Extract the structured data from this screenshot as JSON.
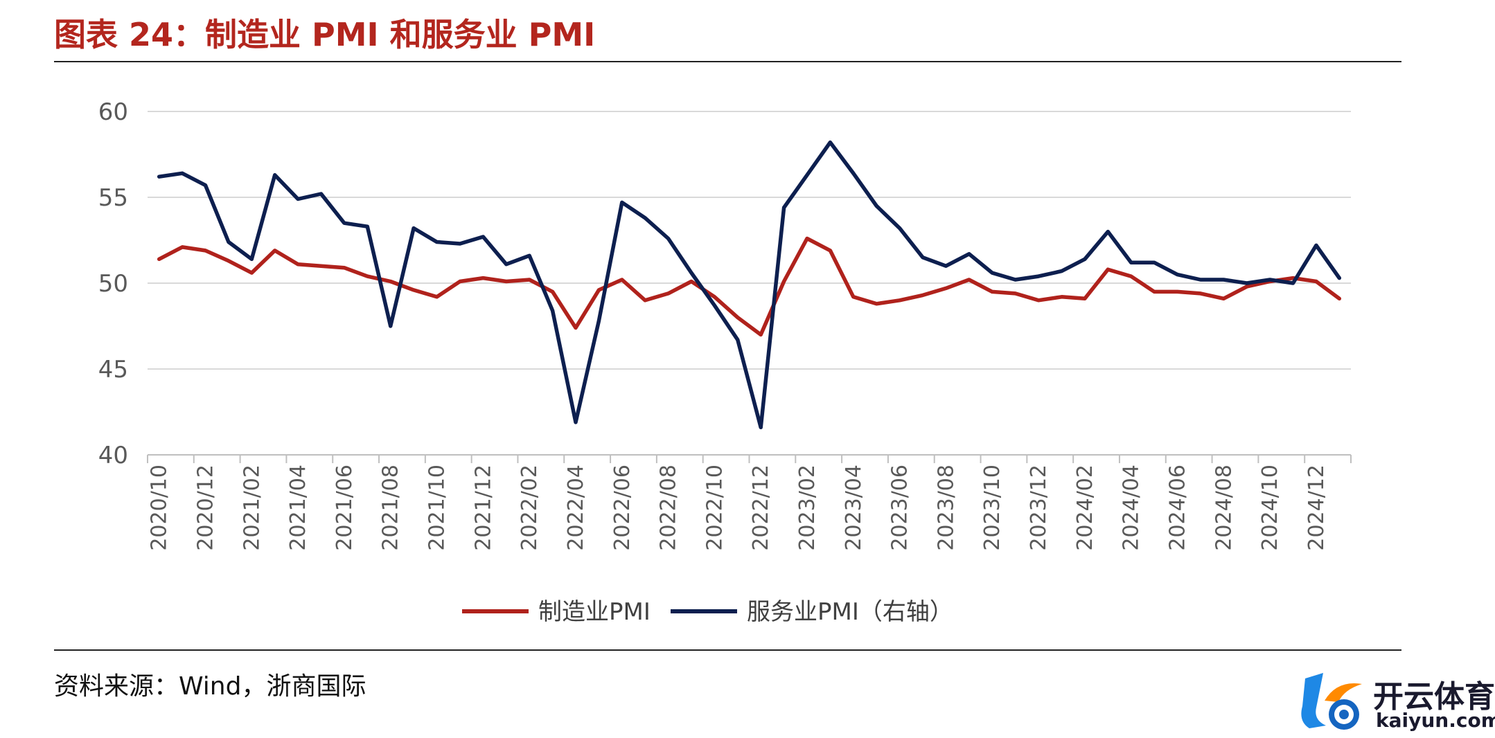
{
  "header": {
    "title": "图表 24：制造业 PMI 和服务业 PMI"
  },
  "footer": {
    "source": "资料来源：Wind，浙商国际"
  },
  "logo": {
    "cn": "开云体育",
    "en": "kaiyun.com"
  },
  "colors": {
    "title": "#b3261e",
    "manufacturing": "#b0221c",
    "services": "#0d1f4f",
    "grid": "#d9d9d9",
    "axis_text": "#595959"
  },
  "chart_data": {
    "type": "line",
    "title": "图表 24：制造业 PMI 和服务业 PMI",
    "xlabel": "",
    "ylabel": "",
    "ylim": [
      40,
      60
    ],
    "yticks": [
      40,
      45,
      50,
      55,
      60
    ],
    "grid": true,
    "legend_position": "bottom",
    "x": [
      "2020/10",
      "2020/11",
      "2020/12",
      "2021/01",
      "2021/02",
      "2021/03",
      "2021/04",
      "2021/05",
      "2021/06",
      "2021/07",
      "2021/08",
      "2021/09",
      "2021/10",
      "2021/11",
      "2021/12",
      "2022/01",
      "2022/02",
      "2022/03",
      "2022/04",
      "2022/05",
      "2022/06",
      "2022/07",
      "2022/08",
      "2022/09",
      "2022/10",
      "2022/11",
      "2022/12",
      "2023/01",
      "2023/02",
      "2023/03",
      "2023/04",
      "2023/05",
      "2023/06",
      "2023/07",
      "2023/08",
      "2023/09",
      "2023/10",
      "2023/11",
      "2023/12",
      "2024/01",
      "2024/02",
      "2024/03",
      "2024/04",
      "2024/05",
      "2024/06",
      "2024/07",
      "2024/08",
      "2024/09",
      "2024/10",
      "2024/11",
      "2024/12",
      "2025/01"
    ],
    "x_tick_labels": [
      "2020/10",
      "2020/12",
      "2021/02",
      "2021/04",
      "2021/06",
      "2021/08",
      "2021/10",
      "2021/12",
      "2022/02",
      "2022/04",
      "2022/06",
      "2022/08",
      "2022/10",
      "2022/12",
      "2023/02",
      "2023/04",
      "2023/06",
      "2023/08",
      "2023/10",
      "2023/12",
      "2024/02",
      "2024/04",
      "2024/06",
      "2024/08",
      "2024/10",
      "2024/12"
    ],
    "series": [
      {
        "name": "制造业PMI",
        "values": [
          51.4,
          52.1,
          51.9,
          51.3,
          50.6,
          51.9,
          51.1,
          51.0,
          50.9,
          50.4,
          50.1,
          49.6,
          49.2,
          50.1,
          50.3,
          50.1,
          50.2,
          49.5,
          47.4,
          49.6,
          50.2,
          49.0,
          49.4,
          50.1,
          49.2,
          48.0,
          47.0,
          50.1,
          52.6,
          51.9,
          49.2,
          48.8,
          49.0,
          49.3,
          49.7,
          50.2,
          49.5,
          49.4,
          49.0,
          49.2,
          49.1,
          50.8,
          50.4,
          49.5,
          49.5,
          49.4,
          49.1,
          49.8,
          50.1,
          50.3,
          50.1,
          49.1
        ]
      },
      {
        "name": "服务业PMI（右轴）",
        "values": [
          56.2,
          56.4,
          55.7,
          52.4,
          51.4,
          56.3,
          54.9,
          55.2,
          53.5,
          53.3,
          47.5,
          53.2,
          52.4,
          52.3,
          52.7,
          51.1,
          51.6,
          48.4,
          41.9,
          47.8,
          54.7,
          53.8,
          52.6,
          50.6,
          48.7,
          46.7,
          41.6,
          54.4,
          56.3,
          58.2,
          56.4,
          54.5,
          53.2,
          51.5,
          51.0,
          51.7,
          50.6,
          50.2,
          50.4,
          50.7,
          51.4,
          53.0,
          51.2,
          51.2,
          50.5,
          50.2,
          50.2,
          50.0,
          50.2,
          50.0,
          52.2,
          50.3
        ]
      }
    ]
  }
}
